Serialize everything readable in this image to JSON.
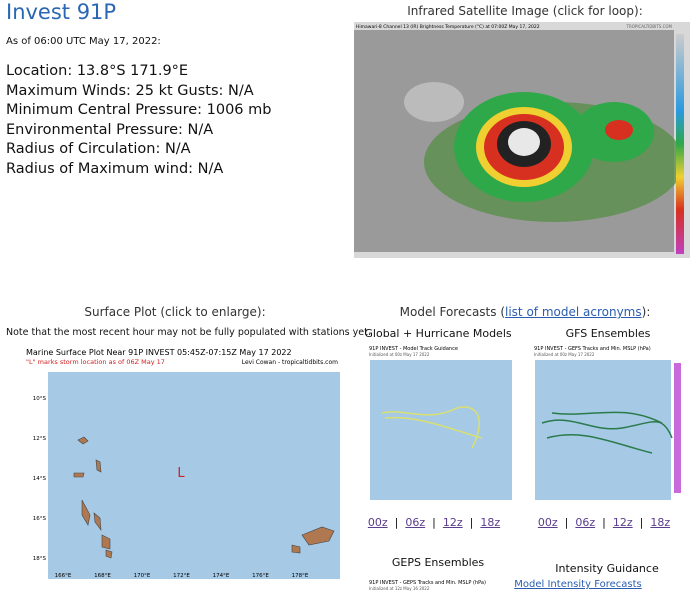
{
  "header": {
    "title": "Invest 91P",
    "as_of": "As of 06:00 UTC May 17, 2022:"
  },
  "details": [
    "Location: 13.8°S 171.9°E",
    "Maximum Winds: 25 kt  Gusts: N/A",
    "Minimum Central Pressure: 1006 mb",
    "Environmental Pressure: N/A",
    "Radius of Circulation: N/A",
    "Radius of Maximum wind: N/A"
  ],
  "satellite": {
    "heading": "Infrared Satellite Image (click for loop):",
    "image_caption": "Himawari-8 Channel 13 (IR) Brightness Temperature (°C) at 07:00Z May 17, 2022",
    "credit": "TROPICALTIDBITS.COM"
  },
  "surface": {
    "heading": "Surface Plot (click to enlarge):",
    "note": "Note that the most recent hour may not be fully populated with stations yet.",
    "plot_title": "Marine Surface Plot Near 91P INVEST 05:45Z-07:15Z May 17 2022",
    "plot_subtitle": "\"L\" marks storm location as of 06Z May 17",
    "credit": "Levi Cowan - tropicaltidbits.com",
    "storm_marker": "L",
    "lat_labels": [
      "10°S",
      "12°S",
      "14°S",
      "16°S",
      "18°S"
    ],
    "lon_labels": [
      "166°E",
      "168°E",
      "170°E",
      "172°E",
      "174°E",
      "176°E",
      "178°E"
    ]
  },
  "models": {
    "heading_prefix": "Model Forecasts (",
    "heading_link": "list of model acronyms",
    "heading_suffix": "):",
    "separator": "|",
    "panels": [
      {
        "title": "Global + Hurricane Models",
        "image_title": "91P INVEST - Model Track Guidance",
        "image_subtitle": "Initialized at 00z May 17 2022",
        "links": [
          "00z",
          "06z",
          "12z",
          "18z"
        ]
      },
      {
        "title": "GFS Ensembles",
        "image_title": "91P INVEST - GEFS Tracks and Min. MSLP (hPa)",
        "image_subtitle": "Initialized at 00z May 17 2022",
        "links": [
          "00z",
          "06z",
          "12z",
          "18z"
        ]
      }
    ],
    "geps": {
      "title": "GEPS Ensembles",
      "image_title": "91P INVEST - GEPS Tracks and Min. MSLP (hPa)",
      "image_subtitle": "Initialized at 12z May 16 2022"
    },
    "intensity": {
      "title": "Intensity Guidance",
      "link": "Model Intensity Forecasts"
    }
  }
}
